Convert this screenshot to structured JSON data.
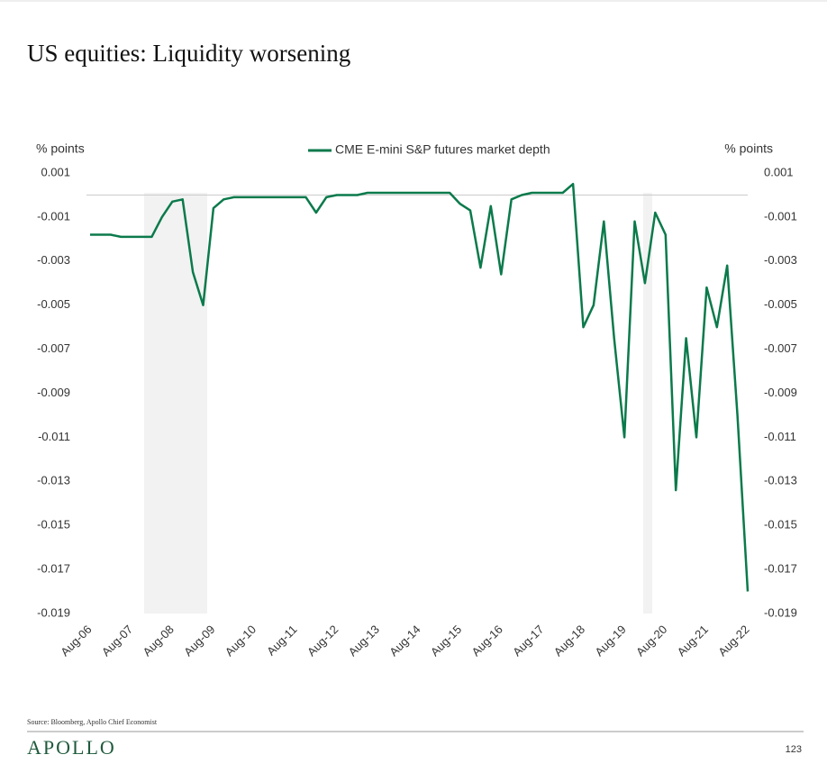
{
  "chart_data": {
    "type": "line",
    "title": "US equities: Liquidity worsening",
    "y_label": "% points",
    "y2_label": "% points",
    "categories": [
      "Aug-06",
      null,
      null,
      null,
      "Aug-07",
      null,
      null,
      null,
      "Aug-08",
      null,
      null,
      null,
      "Aug-09",
      null,
      null,
      null,
      "Aug-10",
      null,
      null,
      null,
      "Aug-11",
      null,
      null,
      null,
      "Aug-12",
      null,
      null,
      null,
      "Aug-13",
      null,
      null,
      null,
      "Aug-14",
      null,
      null,
      null,
      "Aug-15",
      null,
      null,
      null,
      "Aug-16",
      null,
      null,
      null,
      "Aug-17",
      null,
      null,
      null,
      "Aug-18",
      null,
      null,
      null,
      "Aug-19",
      null,
      null,
      null,
      "Aug-20",
      null,
      null,
      null,
      "Aug-21",
      null,
      null,
      null,
      "Aug-22"
    ],
    "series": [
      {
        "name": "CME E-mini S&P futures market depth",
        "color": "#0b7a4b",
        "values": [
          -0.0018,
          -0.0018,
          -0.0018,
          -0.0019,
          -0.0019,
          -0.0019,
          -0.0019,
          -0.001,
          -0.0003,
          -0.0002,
          -0.0035,
          -0.005,
          -0.0006,
          -0.0002,
          -0.0001,
          -0.0001,
          -0.0001,
          -0.0001,
          -0.0001,
          -0.0001,
          -0.0001,
          -0.0001,
          -0.0008,
          -0.0001,
          0,
          0,
          0,
          0.0001,
          0.0001,
          0.0001,
          0.0001,
          0.0001,
          0.0001,
          0.0001,
          0.0001,
          0.0001,
          -0.0004,
          -0.0007,
          -0.0033,
          -0.0005,
          -0.0036,
          -0.0002,
          0,
          0.0001,
          0.0001,
          0.0001,
          0.0001,
          0.0005,
          -0.006,
          -0.005,
          -0.0012,
          -0.0065,
          -0.011,
          -0.0012,
          -0.004,
          -0.0008,
          -0.0018,
          -0.0134,
          -0.0065,
          -0.011,
          -0.0042,
          -0.006,
          -0.0032,
          -0.01,
          -0.018
        ]
      }
    ],
    "ylim": [
      -0.019,
      0.001
    ],
    "yticks": [
      0.001,
      -0.001,
      -0.003,
      -0.005,
      -0.007,
      -0.009,
      -0.011,
      -0.013,
      -0.015,
      -0.017,
      -0.019
    ],
    "y2lim": [
      -0.019,
      0.001
    ],
    "y2ticks": [
      0.001,
      -0.001,
      -0.003,
      -0.005,
      -0.007,
      -0.009,
      -0.011,
      -0.013,
      -0.015,
      -0.017,
      -0.019
    ],
    "legend": "top"
  },
  "footer": {
    "source": "Source: Bloomberg, Apollo Chief Economist",
    "brand": "APOLLO",
    "page": "123"
  }
}
